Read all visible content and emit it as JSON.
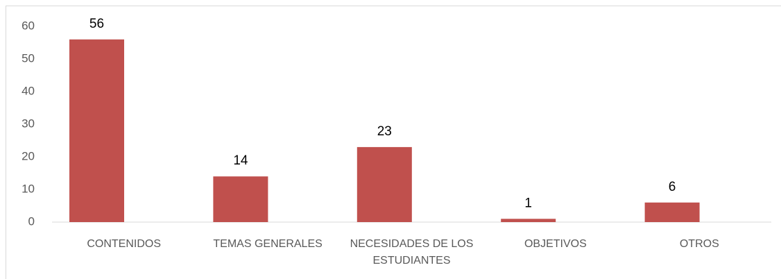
{
  "chart_data": {
    "type": "bar",
    "categories": [
      "CONTENIDOS",
      "TEMAS GENERALES",
      "NECESIDADES DE LOS ESTUDIANTES",
      "OBJETIVOS",
      "OTROS"
    ],
    "values": [
      56,
      14,
      23,
      1,
      6
    ],
    "color": "#c0504d",
    "ylim": [
      0,
      60
    ],
    "yticks": [
      0,
      10,
      20,
      30,
      40,
      50,
      60
    ],
    "grid": false
  }
}
